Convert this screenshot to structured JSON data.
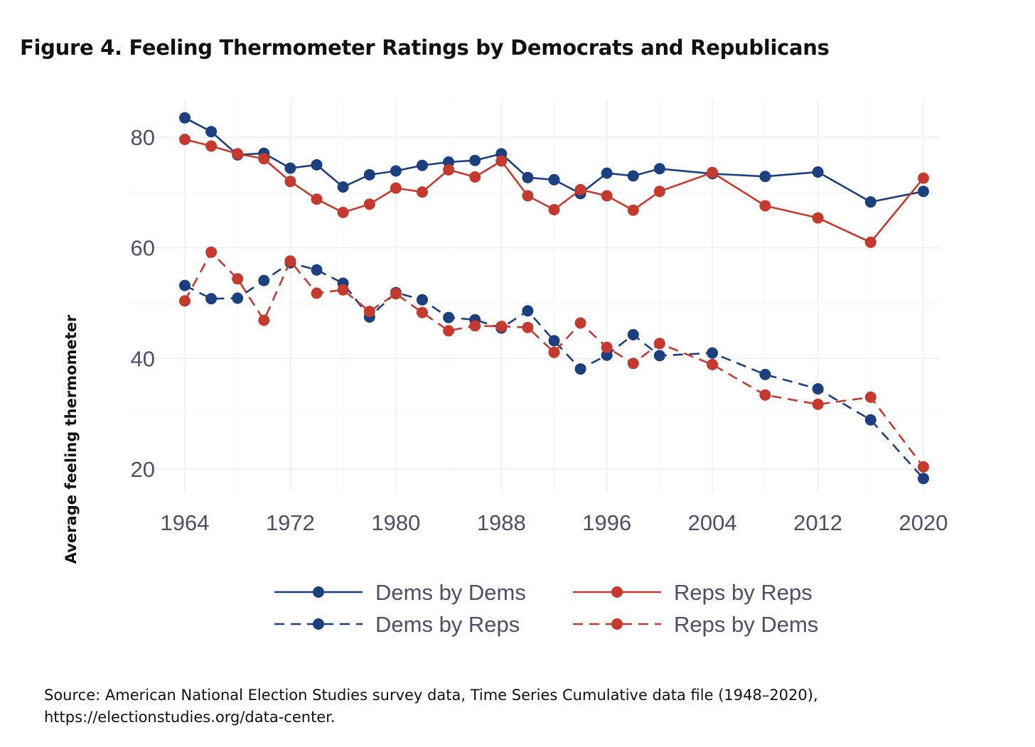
{
  "figure": {
    "title": "Figure 4. Feeling Thermometer Ratings by Democrats and Republicans",
    "source_line1": "Source: American National Election Studies survey data, Time Series Cumulative data file (1948–2020),",
    "source_line2": "https://electionstudies.org/data-center."
  },
  "colors": {
    "dem": "#1c3f7f",
    "rep": "#c53a2e",
    "axis_text": "#4a506a",
    "grid": "#ebebeb"
  },
  "chart_data": {
    "type": "line",
    "title": "Figure 4. Feeling Thermometer Ratings by Democrats and Republicans",
    "xlabel": "",
    "ylabel": "Average feeling thermometer",
    "xlim": [
      1964,
      2020
    ],
    "ylim": [
      18,
      86
    ],
    "x_ticks": [
      1964,
      1972,
      1980,
      1988,
      1996,
      2004,
      2012,
      2020
    ],
    "y_ticks": [
      20,
      40,
      60,
      80
    ],
    "grid": true,
    "legend_position": "bottom",
    "series": [
      {
        "name": "Dems by Dems",
        "color": "#1c3f7f",
        "dash": "solid",
        "points": [
          [
            1964,
            83.5
          ],
          [
            1966,
            81
          ],
          [
            1968,
            76.8
          ],
          [
            1970,
            77.1
          ],
          [
            1972,
            74.4
          ],
          [
            1974,
            75
          ],
          [
            1976,
            71
          ],
          [
            1978,
            73.2
          ],
          [
            1980,
            73.9
          ],
          [
            1982,
            74.9
          ],
          [
            1984,
            75.5
          ],
          [
            1986,
            75.8
          ],
          [
            1988,
            77
          ],
          [
            1990,
            72.7
          ],
          [
            1992,
            72.3
          ],
          [
            1994,
            69.8
          ],
          [
            1996,
            73.5
          ],
          [
            1998,
            73
          ],
          [
            2000,
            74.3
          ],
          [
            2004,
            73.4
          ],
          [
            2008,
            72.9
          ],
          [
            2012,
            73.7
          ],
          [
            2016,
            68.3
          ],
          [
            2020,
            70.2
          ]
        ]
      },
      {
        "name": "Reps by Reps",
        "color": "#c53a2e",
        "dash": "solid",
        "points": [
          [
            1964,
            79.6
          ],
          [
            1966,
            78.4
          ],
          [
            1968,
            77
          ],
          [
            1970,
            76.1
          ],
          [
            1972,
            72
          ],
          [
            1974,
            68.8
          ],
          [
            1976,
            66.4
          ],
          [
            1978,
            67.9
          ],
          [
            1980,
            70.8
          ],
          [
            1982,
            70.1
          ],
          [
            1984,
            74.1
          ],
          [
            1986,
            72.8
          ],
          [
            1988,
            75.7
          ],
          [
            1990,
            69.4
          ],
          [
            1992,
            66.9
          ],
          [
            1994,
            70.5
          ],
          [
            1996,
            69.4
          ],
          [
            1998,
            66.8
          ],
          [
            2000,
            70.2
          ],
          [
            2004,
            73.6
          ],
          [
            2008,
            67.6
          ],
          [
            2012,
            65.4
          ],
          [
            2016,
            61
          ],
          [
            2020,
            72.6
          ]
        ]
      },
      {
        "name": "Dems by Reps",
        "color": "#1c3f7f",
        "dash": "dashed",
        "points": [
          [
            1964,
            53.2
          ],
          [
            1966,
            50.8
          ],
          [
            1968,
            50.9
          ],
          [
            1970,
            54.1
          ],
          [
            1972,
            57.3
          ],
          [
            1974,
            56
          ],
          [
            1976,
            53.6
          ],
          [
            1978,
            47.5
          ],
          [
            1980,
            51.9
          ],
          [
            1982,
            50.6
          ],
          [
            1984,
            47.4
          ],
          [
            1986,
            47
          ],
          [
            1988,
            45.5
          ],
          [
            1990,
            48.6
          ],
          [
            1992,
            43.2
          ],
          [
            1994,
            38.1
          ],
          [
            1996,
            40.6
          ],
          [
            1998,
            44.3
          ],
          [
            2000,
            40.5
          ],
          [
            2004,
            41
          ],
          [
            2008,
            37.1
          ],
          [
            2012,
            34.5
          ],
          [
            2016,
            28.9
          ],
          [
            2020,
            18.3
          ]
        ]
      },
      {
        "name": "Reps by Dems",
        "color": "#c53a2e",
        "dash": "dashed",
        "points": [
          [
            1964,
            50.4
          ],
          [
            1966,
            59.2
          ],
          [
            1968,
            54.4
          ],
          [
            1970,
            46.9
          ],
          [
            1972,
            57.6
          ],
          [
            1974,
            51.8
          ],
          [
            1976,
            52.4
          ],
          [
            1978,
            48.5
          ],
          [
            1980,
            51.7
          ],
          [
            1982,
            48.3
          ],
          [
            1984,
            45
          ],
          [
            1986,
            45.9
          ],
          [
            1988,
            45.8
          ],
          [
            1990,
            45.6
          ],
          [
            1992,
            41.1
          ],
          [
            1994,
            46.4
          ],
          [
            1996,
            42
          ],
          [
            1998,
            39.1
          ],
          [
            2000,
            42.7
          ],
          [
            2004,
            38.9
          ],
          [
            2008,
            33.4
          ],
          [
            2012,
            31.7
          ],
          [
            2016,
            33
          ],
          [
            2020,
            20.4
          ]
        ]
      }
    ],
    "legend": [
      "Dems by Dems",
      "Reps by Reps",
      "Dems by Reps",
      "Reps by Dems"
    ]
  }
}
